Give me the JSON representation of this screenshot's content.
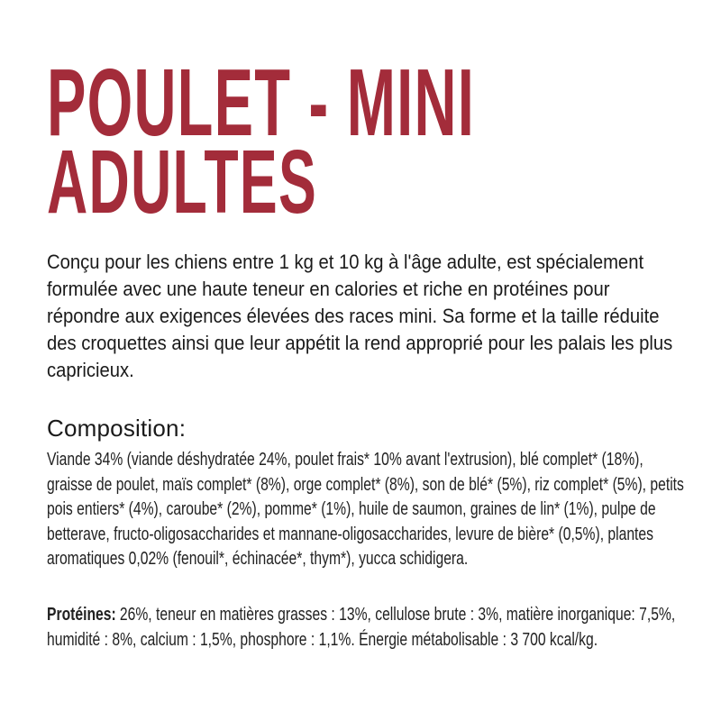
{
  "colors": {
    "accent": "#a32c3a",
    "body_text": "#1a1a1a",
    "background": "#ffffff"
  },
  "title": {
    "line1": "POULET - MINI",
    "line2": "ADULTES"
  },
  "description": "Conçu pour les chiens entre 1 kg et 10 kg à l'âge adulte, est spécialement formulée avec une haute teneur en calories et riche en protéines pour répondre aux exigences élevées des races mini. Sa forme et la taille réduite des croquettes ainsi que leur appétit la rend approprié pour les palais les plus capricieux.",
  "composition": {
    "heading": "Composition:",
    "text": "Viande 34% (viande déshydratée 24%, poulet frais* 10% avant l'extrusion), blé complet* (18%), graisse de poulet, maïs complet* (8%), orge complet* (8%), son de blé* (5%), riz complet* (5%), petits pois entiers* (4%), caroube* (2%), pomme* (1%), huile de saumon, graines de lin* (1%), pulpe de betterave, fructo-oligosaccharides et mannane-oligosaccharides, levure de bière* (0,5%), plantes aromatiques 0,02% (fenouil*, échinacée*, thym*), yucca schidigera."
  },
  "analysis": {
    "label": "Protéines:",
    "text": "26%, teneur en matières grasses : 13%, cellulose brute : 3%, matière inorganique: 7,5%, humidité : 8%, calcium : 1,5%, phosphore : 1,1%. Énergie métabolisable : 3 700 kcal/kg."
  }
}
